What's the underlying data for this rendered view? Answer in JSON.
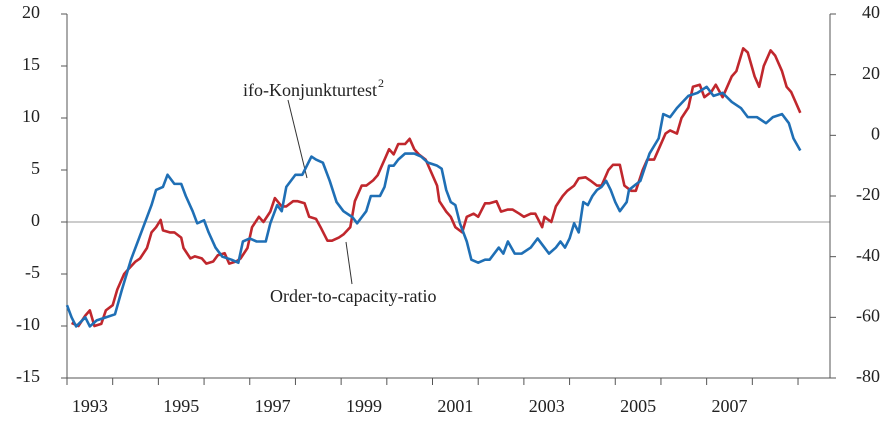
{
  "chart_data": {
    "type": "line",
    "xlim": [
      1993,
      2009.7
    ],
    "xticks": [
      {
        "value": 1993.5,
        "label": "1993"
      },
      {
        "value": 1995.5,
        "label": "1995"
      },
      {
        "value": 1997.5,
        "label": "1997"
      },
      {
        "value": 1999.5,
        "label": "1999"
      },
      {
        "value": 2001.5,
        "label": "2001"
      },
      {
        "value": 2003.5,
        "label": "2003"
      },
      {
        "value": 2005.5,
        "label": "2005"
      },
      {
        "value": 2007.5,
        "label": "2007"
      }
    ],
    "x_minor_ticks": [
      1993,
      1994,
      1995,
      1996,
      1997,
      1998,
      1999,
      2000,
      2001,
      2002,
      2003,
      2004,
      2005,
      2006,
      2007,
      2008,
      2009
    ],
    "ylim": [
      -15,
      20
    ],
    "yticks": [
      -15,
      -10,
      -5,
      0,
      5,
      10,
      15,
      20
    ],
    "y2lim": [
      -80,
      40
    ],
    "y2ticks": [
      -80,
      -60,
      -40,
      -20,
      0,
      20,
      40
    ],
    "zero_line": true,
    "series": [
      {
        "name": "Order-to-capacity-ratio",
        "color": "#c0272d",
        "x": [
          1993.1,
          1993.25,
          1993.4,
          1993.5,
          1993.6,
          1993.75,
          1993.85,
          1994.0,
          1994.1,
          1994.25,
          1994.35,
          1994.5,
          1994.6,
          1994.75,
          1994.85,
          1994.95,
          1995.05,
          1995.1,
          1995.25,
          1995.35,
          1995.5,
          1995.55,
          1995.7,
          1995.8,
          1995.95,
          1996.05,
          1996.2,
          1996.3,
          1996.45,
          1996.55,
          1996.7,
          1996.8,
          1996.95,
          1997.05,
          1997.2,
          1997.3,
          1997.45,
          1997.55,
          1997.7,
          1997.8,
          1997.95,
          1998.05,
          1998.2,
          1998.3,
          1998.45,
          1998.55,
          1998.7,
          1998.8,
          1998.95,
          1999.05,
          1999.2,
          1999.3,
          1999.45,
          1999.55,
          1999.7,
          1999.8,
          1999.95,
          2000.05,
          2000.15,
          2000.25,
          2000.4,
          2000.5,
          2000.6,
          2000.7,
          2000.85,
          2000.95,
          2001.1,
          2001.15,
          2001.3,
          2001.4,
          2001.5,
          2001.65,
          2001.75,
          2001.9,
          2002.0,
          2002.15,
          2002.25,
          2002.4,
          2002.5,
          2002.65,
          2002.75,
          2002.9,
          2003.0,
          2003.15,
          2003.25,
          2003.4,
          2003.45,
          2003.6,
          2003.7,
          2003.85,
          2003.95,
          2004.1,
          2004.2,
          2004.35,
          2004.45,
          2004.6,
          2004.7,
          2004.85,
          2004.95,
          2005.1,
          2005.2,
          2005.35,
          2005.45,
          2005.6,
          2005.7,
          2005.85,
          2005.95,
          2006.1,
          2006.2,
          2006.35,
          2006.45,
          2006.6,
          2006.7,
          2006.85,
          2006.95,
          2007.1,
          2007.2,
          2007.35,
          2007.45,
          2007.55,
          2007.65,
          2007.8,
          2007.9,
          2008.05,
          2008.15,
          2008.25,
          2008.4,
          2008.5,
          2008.65,
          2008.75,
          2008.85,
          2008.95,
          2009.05
        ],
        "values": [
          -9.7,
          -10,
          -9,
          -8.5,
          -10,
          -9.8,
          -8.5,
          -8,
          -6.5,
          -5,
          -4.5,
          -3.8,
          -3.5,
          -2.5,
          -1,
          -0.5,
          0.2,
          -0.8,
          -1,
          -1,
          -1.5,
          -2.5,
          -3.5,
          -3.3,
          -3.5,
          -4,
          -3.8,
          -3.2,
          -3,
          -4,
          -3.8,
          -3.5,
          -2.5,
          -0.5,
          0.5,
          0,
          1,
          2.3,
          1.5,
          1.5,
          2,
          2,
          1.8,
          0.5,
          0.3,
          -0.5,
          -1.8,
          -1.8,
          -1.5,
          -1.2,
          -0.5,
          2,
          3.5,
          3.5,
          4,
          4.5,
          6,
          7,
          6.5,
          7.5,
          7.5,
          8,
          7,
          6.5,
          6,
          5,
          3.5,
          2,
          1,
          0.5,
          -0.5,
          -1,
          0.5,
          0.8,
          0.5,
          1.8,
          1.8,
          2,
          1,
          1.2,
          1.2,
          0.8,
          0.5,
          0.8,
          0.8,
          -0.5,
          0.5,
          0,
          1.5,
          2.5,
          3,
          3.5,
          4.2,
          4.3,
          4,
          3.5,
          3.5,
          5,
          5.5,
          5.5,
          3.5,
          3,
          3,
          5,
          6,
          6,
          7,
          8.5,
          8.8,
          8.5,
          10,
          11,
          13,
          13.2,
          12,
          12.5,
          13.2,
          12,
          13,
          14,
          14.5,
          16.7,
          16.3,
          14,
          13,
          15,
          16.5,
          16,
          14.5,
          13,
          12.5,
          11.5,
          10.5
        ]
      },
      {
        "name": "ifo-Konjunkturtest",
        "footnote": "2",
        "color": "#1f6fb5",
        "axis": "y2",
        "x": [
          1993.0,
          1993.1,
          1993.2,
          1993.4,
          1993.5,
          1993.65,
          1993.85,
          1994.05,
          1994.2,
          1994.4,
          1994.55,
          1994.7,
          1994.85,
          1994.95,
          1995.1,
          1995.2,
          1995.35,
          1995.5,
          1995.6,
          1995.75,
          1995.85,
          1996.0,
          1996.1,
          1996.25,
          1996.4,
          1996.6,
          1996.75,
          1996.85,
          1997.0,
          1997.15,
          1997.35,
          1997.45,
          1997.6,
          1997.7,
          1997.8,
          1998.0,
          1998.15,
          1998.25,
          1998.35,
          1998.45,
          1998.6,
          1998.75,
          1998.9,
          1999.05,
          1999.25,
          1999.35,
          1999.45,
          1999.55,
          1999.65,
          1999.85,
          1999.95,
          2000.05,
          2000.15,
          2000.25,
          2000.4,
          2000.6,
          2000.75,
          2000.9,
          2001.1,
          2001.2,
          2001.3,
          2001.4,
          2001.5,
          2001.6,
          2001.75,
          2001.85,
          2002.0,
          2002.15,
          2002.25,
          2002.45,
          2002.55,
          2002.65,
          2002.8,
          2002.95,
          2003.15,
          2003.3,
          2003.45,
          2003.55,
          2003.7,
          2003.8,
          2003.9,
          2004.0,
          2004.1,
          2004.2,
          2004.3,
          2004.4,
          2004.5,
          2004.6,
          2004.7,
          2004.8,
          2004.9,
          2005.0,
          2005.1,
          2005.2,
          2005.25,
          2005.3,
          2005.55,
          2005.75,
          2005.95,
          2006.05,
          2006.2,
          2006.35,
          2006.6,
          2006.8,
          2007.0,
          2007.15,
          2007.35,
          2007.55,
          2007.75,
          2007.9,
          2008.1,
          2008.3,
          2008.45,
          2008.65,
          2008.8,
          2008.9,
          2009.05
        ],
        "values": [
          -56,
          -60,
          -63,
          -60,
          -63,
          -61,
          -60,
          -59,
          -51,
          -41,
          -35,
          -29,
          -23,
          -18,
          -17,
          -13,
          -16,
          -16,
          -20,
          -25,
          -29,
          -28,
          -32,
          -37,
          -40,
          -41,
          -42,
          -35,
          -34,
          -35,
          -35,
          -29,
          -23,
          -25,
          -17,
          -13,
          -13,
          -10,
          -7,
          -8,
          -9,
          -15,
          -22,
          -25,
          -27,
          -29,
          -27,
          -25,
          -20,
          -20,
          -17,
          -10,
          -10,
          -8,
          -6,
          -6,
          -7,
          -9,
          -10,
          -11,
          -18,
          -22,
          -23,
          -29,
          -35,
          -41,
          -42,
          -41,
          -41,
          -37,
          -39,
          -35,
          -39,
          -39,
          -37,
          -34,
          -37,
          -39,
          -37,
          -35,
          -37,
          -34,
          -29,
          -32,
          -22,
          -23,
          -20,
          -18,
          -17,
          -15,
          -18,
          -22,
          -25,
          -23,
          -22,
          -18,
          -15,
          -6,
          -1,
          7,
          6,
          9,
          13,
          14,
          16,
          13,
          14,
          11,
          9,
          6,
          6,
          4,
          6,
          7,
          4,
          -1,
          -5
        ]
      }
    ]
  }
}
